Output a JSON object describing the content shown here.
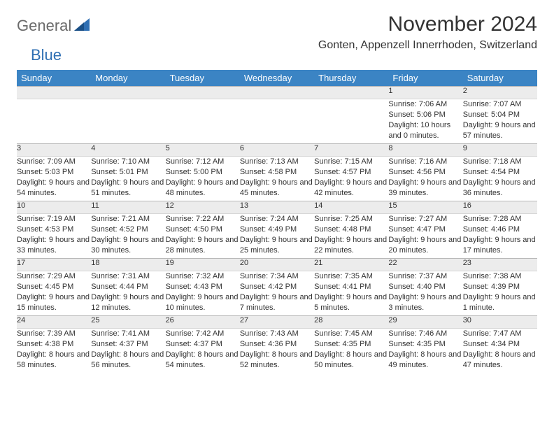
{
  "brand": {
    "part1": "General",
    "part2": "Blue"
  },
  "title": "November 2024",
  "location": "Gonten, Appenzell Innerrhoden, Switzerland",
  "colors": {
    "headerBg": "#3b84c4",
    "dayRowBg": "#ececec",
    "brandBlue": "#2f6fb3",
    "brandGray": "#6a6a6a"
  },
  "weekdays": [
    "Sunday",
    "Monday",
    "Tuesday",
    "Wednesday",
    "Thursday",
    "Friday",
    "Saturday"
  ],
  "weeks": [
    [
      null,
      null,
      null,
      null,
      null,
      {
        "n": "1",
        "sr": "Sunrise: 7:06 AM",
        "ss": "Sunset: 5:06 PM",
        "dl": "Daylight: 10 hours and 0 minutes."
      },
      {
        "n": "2",
        "sr": "Sunrise: 7:07 AM",
        "ss": "Sunset: 5:04 PM",
        "dl": "Daylight: 9 hours and 57 minutes."
      }
    ],
    [
      {
        "n": "3",
        "sr": "Sunrise: 7:09 AM",
        "ss": "Sunset: 5:03 PM",
        "dl": "Daylight: 9 hours and 54 minutes."
      },
      {
        "n": "4",
        "sr": "Sunrise: 7:10 AM",
        "ss": "Sunset: 5:01 PM",
        "dl": "Daylight: 9 hours and 51 minutes."
      },
      {
        "n": "5",
        "sr": "Sunrise: 7:12 AM",
        "ss": "Sunset: 5:00 PM",
        "dl": "Daylight: 9 hours and 48 minutes."
      },
      {
        "n": "6",
        "sr": "Sunrise: 7:13 AM",
        "ss": "Sunset: 4:58 PM",
        "dl": "Daylight: 9 hours and 45 minutes."
      },
      {
        "n": "7",
        "sr": "Sunrise: 7:15 AM",
        "ss": "Sunset: 4:57 PM",
        "dl": "Daylight: 9 hours and 42 minutes."
      },
      {
        "n": "8",
        "sr": "Sunrise: 7:16 AM",
        "ss": "Sunset: 4:56 PM",
        "dl": "Daylight: 9 hours and 39 minutes."
      },
      {
        "n": "9",
        "sr": "Sunrise: 7:18 AM",
        "ss": "Sunset: 4:54 PM",
        "dl": "Daylight: 9 hours and 36 minutes."
      }
    ],
    [
      {
        "n": "10",
        "sr": "Sunrise: 7:19 AM",
        "ss": "Sunset: 4:53 PM",
        "dl": "Daylight: 9 hours and 33 minutes."
      },
      {
        "n": "11",
        "sr": "Sunrise: 7:21 AM",
        "ss": "Sunset: 4:52 PM",
        "dl": "Daylight: 9 hours and 30 minutes."
      },
      {
        "n": "12",
        "sr": "Sunrise: 7:22 AM",
        "ss": "Sunset: 4:50 PM",
        "dl": "Daylight: 9 hours and 28 minutes."
      },
      {
        "n": "13",
        "sr": "Sunrise: 7:24 AM",
        "ss": "Sunset: 4:49 PM",
        "dl": "Daylight: 9 hours and 25 minutes."
      },
      {
        "n": "14",
        "sr": "Sunrise: 7:25 AM",
        "ss": "Sunset: 4:48 PM",
        "dl": "Daylight: 9 hours and 22 minutes."
      },
      {
        "n": "15",
        "sr": "Sunrise: 7:27 AM",
        "ss": "Sunset: 4:47 PM",
        "dl": "Daylight: 9 hours and 20 minutes."
      },
      {
        "n": "16",
        "sr": "Sunrise: 7:28 AM",
        "ss": "Sunset: 4:46 PM",
        "dl": "Daylight: 9 hours and 17 minutes."
      }
    ],
    [
      {
        "n": "17",
        "sr": "Sunrise: 7:29 AM",
        "ss": "Sunset: 4:45 PM",
        "dl": "Daylight: 9 hours and 15 minutes."
      },
      {
        "n": "18",
        "sr": "Sunrise: 7:31 AM",
        "ss": "Sunset: 4:44 PM",
        "dl": "Daylight: 9 hours and 12 minutes."
      },
      {
        "n": "19",
        "sr": "Sunrise: 7:32 AM",
        "ss": "Sunset: 4:43 PM",
        "dl": "Daylight: 9 hours and 10 minutes."
      },
      {
        "n": "20",
        "sr": "Sunrise: 7:34 AM",
        "ss": "Sunset: 4:42 PM",
        "dl": "Daylight: 9 hours and 7 minutes."
      },
      {
        "n": "21",
        "sr": "Sunrise: 7:35 AM",
        "ss": "Sunset: 4:41 PM",
        "dl": "Daylight: 9 hours and 5 minutes."
      },
      {
        "n": "22",
        "sr": "Sunrise: 7:37 AM",
        "ss": "Sunset: 4:40 PM",
        "dl": "Daylight: 9 hours and 3 minutes."
      },
      {
        "n": "23",
        "sr": "Sunrise: 7:38 AM",
        "ss": "Sunset: 4:39 PM",
        "dl": "Daylight: 9 hours and 1 minute."
      }
    ],
    [
      {
        "n": "24",
        "sr": "Sunrise: 7:39 AM",
        "ss": "Sunset: 4:38 PM",
        "dl": "Daylight: 8 hours and 58 minutes."
      },
      {
        "n": "25",
        "sr": "Sunrise: 7:41 AM",
        "ss": "Sunset: 4:37 PM",
        "dl": "Daylight: 8 hours and 56 minutes."
      },
      {
        "n": "26",
        "sr": "Sunrise: 7:42 AM",
        "ss": "Sunset: 4:37 PM",
        "dl": "Daylight: 8 hours and 54 minutes."
      },
      {
        "n": "27",
        "sr": "Sunrise: 7:43 AM",
        "ss": "Sunset: 4:36 PM",
        "dl": "Daylight: 8 hours and 52 minutes."
      },
      {
        "n": "28",
        "sr": "Sunrise: 7:45 AM",
        "ss": "Sunset: 4:35 PM",
        "dl": "Daylight: 8 hours and 50 minutes."
      },
      {
        "n": "29",
        "sr": "Sunrise: 7:46 AM",
        "ss": "Sunset: 4:35 PM",
        "dl": "Daylight: 8 hours and 49 minutes."
      },
      {
        "n": "30",
        "sr": "Sunrise: 7:47 AM",
        "ss": "Sunset: 4:34 PM",
        "dl": "Daylight: 8 hours and 47 minutes."
      }
    ]
  ]
}
